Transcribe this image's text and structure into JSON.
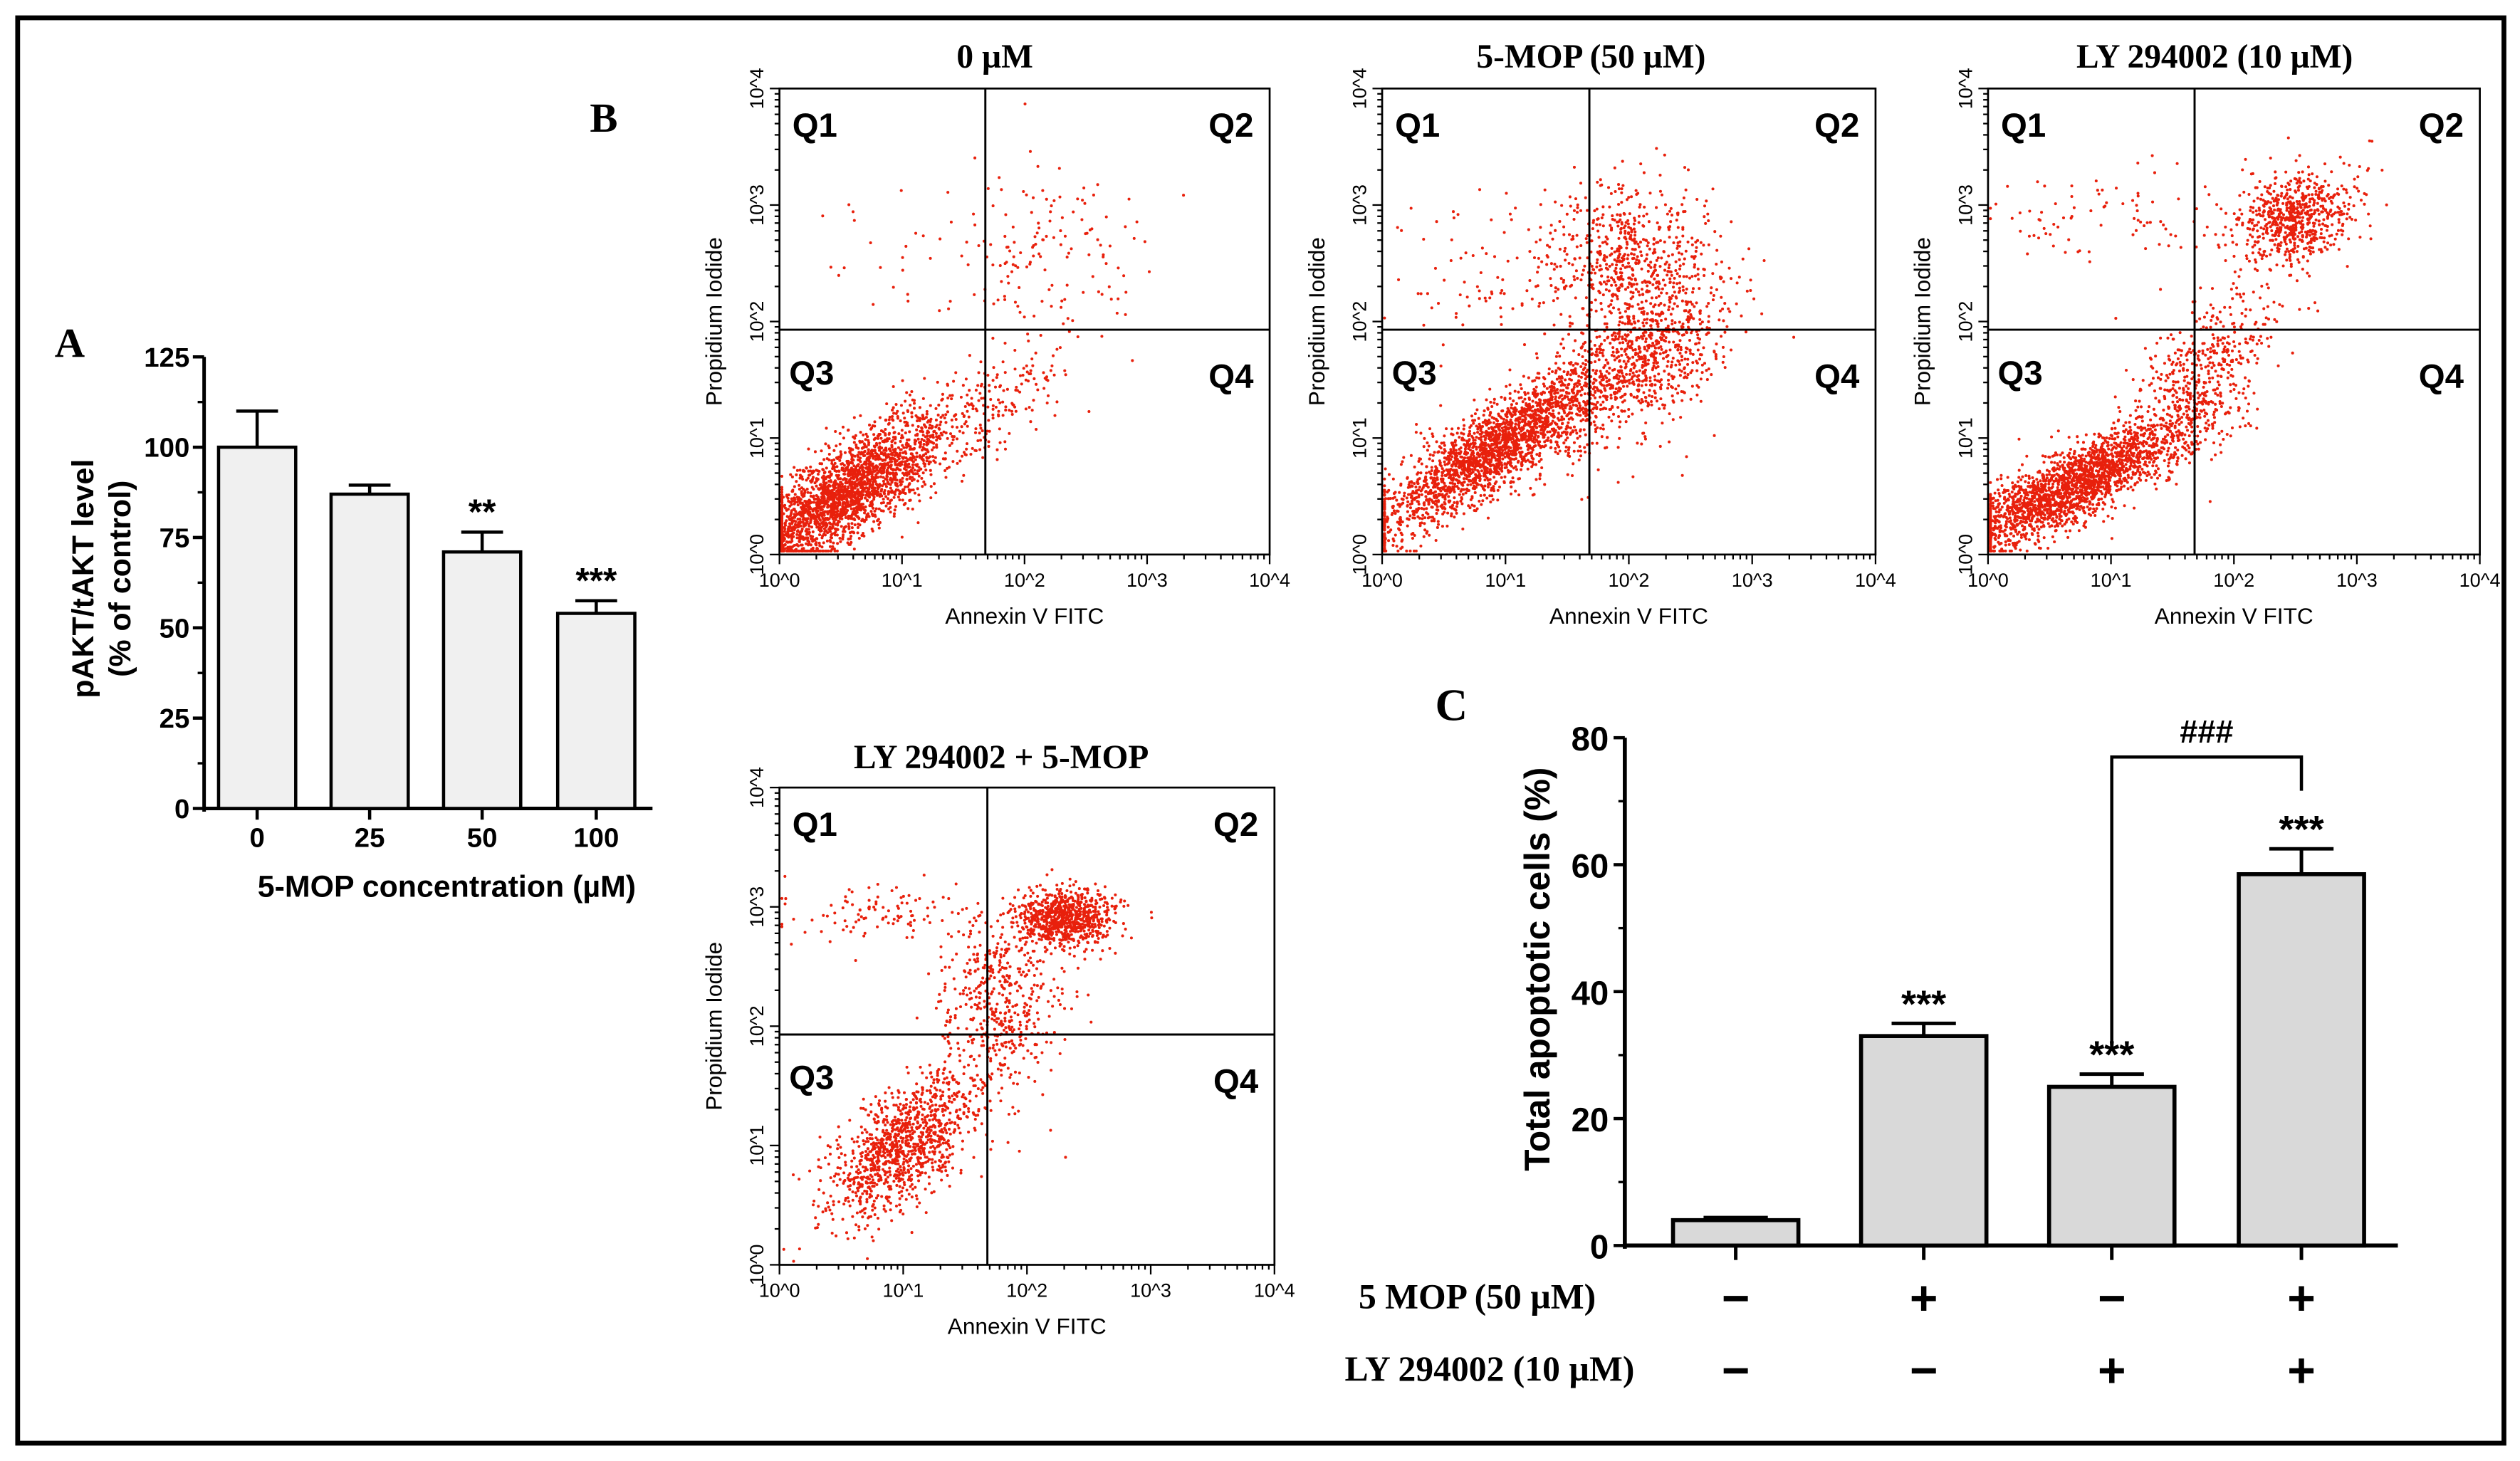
{
  "panel_labels": {
    "a": "A",
    "b": "B",
    "c": "C"
  },
  "chart_data": [
    {
      "id": "A",
      "type": "bar",
      "title": "",
      "xlabel": "5-MOP concentration (µM)",
      "ylabel_lines": [
        "pAKT/tAKT  level",
        "(% of control)"
      ],
      "categories": [
        "0",
        "25",
        "50",
        "100"
      ],
      "values": [
        100,
        87,
        71,
        54
      ],
      "errors": [
        10,
        2.5,
        5.5,
        3.5
      ],
      "significance": [
        "",
        "",
        "**",
        "***"
      ],
      "ylim": [
        0,
        125
      ],
      "yticks": [
        "0",
        "25",
        "50",
        "75",
        "100",
        "125"
      ],
      "bar_color": "#f0f0f0"
    },
    {
      "id": "B",
      "type": "scatter",
      "xlabel": "Annexin V FITC",
      "ylabel": "Propidium Iodide",
      "scale": "log10",
      "xlim_log10": [
        0,
        4
      ],
      "ylim_log10": [
        0,
        4
      ],
      "tick_labels": [
        "10^0",
        "10^1",
        "10^2",
        "10^3",
        "10^4"
      ],
      "quadrant_gate": {
        "annexin_log10": 1.68,
        "pi_log10": 1.93
      },
      "quadrant_labels": [
        "Q1",
        "Q2",
        "Q3",
        "Q4"
      ],
      "dot_color": "#e8200c",
      "plots": [
        {
          "title": "0 µM",
          "populations": [
            {
              "center": [
                0.5,
                0.5
              ],
              "sd": [
                0.45,
                0.35
              ],
              "rho": 0.8,
              "n": 2500
            },
            {
              "center": [
                1.8,
                1.3
              ],
              "sd": [
                0.3,
                0.25
              ],
              "rho": 0.6,
              "n": 150
            },
            {
              "center": [
                2.2,
                2.6
              ],
              "sd": [
                0.45,
                0.4
              ],
              "rho": 0,
              "n": 150
            },
            {
              "center": [
                0.9,
                2.6
              ],
              "sd": [
                0.5,
                0.3
              ],
              "rho": 0,
              "n": 20
            }
          ]
        },
        {
          "title": "5-MOP (50 µM)",
          "populations": [
            {
              "center": [
                0.9,
                0.9
              ],
              "sd": [
                0.45,
                0.35
              ],
              "rho": 0.85,
              "n": 2200
            },
            {
              "center": [
                2.1,
                1.7
              ],
              "sd": [
                0.35,
                0.4
              ],
              "rho": 0.5,
              "n": 900
            },
            {
              "center": [
                2.0,
                2.6
              ],
              "sd": [
                0.3,
                0.3
              ],
              "rho": 0,
              "n": 500
            },
            {
              "center": [
                1.1,
                2.4
              ],
              "sd": [
                0.5,
                0.3
              ],
              "rho": 0,
              "n": 120
            }
          ]
        },
        {
          "title": "LY 294002 (10 µM)",
          "populations": [
            {
              "center": [
                0.7,
                0.6
              ],
              "sd": [
                0.5,
                0.3
              ],
              "rho": 0.85,
              "n": 2200
            },
            {
              "center": [
                1.7,
                1.5
              ],
              "sd": [
                0.3,
                0.4
              ],
              "rho": 0.6,
              "n": 500
            },
            {
              "center": [
                2.5,
                2.9
              ],
              "sd": [
                0.25,
                0.2
              ],
              "rho": 0.2,
              "n": 700
            },
            {
              "center": [
                1.0,
                2.9
              ],
              "sd": [
                0.5,
                0.2
              ],
              "rho": 0,
              "n": 80
            }
          ]
        },
        {
          "title": "LY 294002 + 5-MOP",
          "populations": [
            {
              "center": [
                1.0,
                1.0
              ],
              "sd": [
                0.3,
                0.3
              ],
              "rho": 0.6,
              "n": 1100
            },
            {
              "center": [
                2.3,
                2.9
              ],
              "sd": [
                0.2,
                0.12
              ],
              "rho": 0,
              "n": 800
            },
            {
              "center": [
                1.8,
                2.2
              ],
              "sd": [
                0.25,
                0.4
              ],
              "rho": 0,
              "n": 500
            },
            {
              "center": [
                0.8,
                2.95
              ],
              "sd": [
                0.4,
                0.12
              ],
              "rho": 0,
              "n": 100
            }
          ]
        }
      ]
    },
    {
      "id": "C",
      "type": "bar",
      "ylabel": "Total apoptotic cells (%)",
      "categories": [
        "control",
        "5 MOP",
        "LY 294002",
        "LY 294002 + 5 MOP"
      ],
      "values": [
        4,
        33,
        25,
        58.5
      ],
      "errors": [
        0.4,
        2,
        2,
        4
      ],
      "significance": [
        "",
        "***",
        "***",
        "***"
      ],
      "comparison": {
        "between": [
          2,
          3
        ],
        "label": "###"
      },
      "ylim": [
        0,
        80
      ],
      "yticks": [
        "0",
        "20",
        "40",
        "60",
        "80"
      ],
      "bar_color": "#d9d9d9",
      "treatment_rows": [
        {
          "label": "5 MOP (50 µM)",
          "signs": [
            "−",
            "+",
            "−",
            "+"
          ]
        },
        {
          "label": "LY 294002 (10 µM)",
          "signs": [
            "−",
            "−",
            "+",
            "+"
          ]
        }
      ]
    }
  ]
}
